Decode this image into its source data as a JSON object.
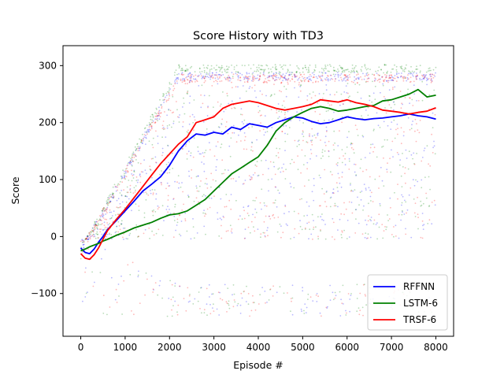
{
  "chart_data": {
    "type": "line",
    "title": "Score History with TD3",
    "xlabel": "Episode #",
    "ylabel": "Score",
    "xlim": [
      -400,
      8400
    ],
    "ylim": [
      -175,
      335
    ],
    "xticks": [
      0,
      1000,
      2000,
      3000,
      4000,
      5000,
      6000,
      7000,
      8000
    ],
    "yticks": [
      -100,
      0,
      100,
      200,
      300
    ],
    "legend_position": "lower right",
    "grid": false,
    "x": [
      0,
      100,
      200,
      300,
      400,
      500,
      600,
      800,
      1000,
      1200,
      1400,
      1600,
      1800,
      2000,
      2200,
      2400,
      2600,
      2800,
      3000,
      3200,
      3400,
      3600,
      3800,
      4000,
      4200,
      4400,
      4600,
      4800,
      5000,
      5200,
      5400,
      5600,
      5800,
      6000,
      6200,
      6400,
      6600,
      6800,
      7000,
      7200,
      7400,
      7600,
      7800,
      8000
    ],
    "series": [
      {
        "name": "RFFNN",
        "color": "#0000ff",
        "values": [
          -20,
          -28,
          -30,
          -22,
          -10,
          0,
          12,
          28,
          45,
          62,
          80,
          92,
          105,
          125,
          150,
          168,
          180,
          178,
          183,
          180,
          192,
          188,
          198,
          195,
          192,
          200,
          205,
          210,
          208,
          202,
          198,
          200,
          205,
          210,
          207,
          205,
          207,
          208,
          210,
          212,
          215,
          212,
          210,
          206
        ]
      },
      {
        "name": "LSTM-6",
        "color": "#008000",
        "values": [
          -25,
          -22,
          -18,
          -15,
          -12,
          -8,
          -5,
          2,
          8,
          15,
          20,
          25,
          32,
          38,
          40,
          45,
          55,
          65,
          80,
          95,
          110,
          120,
          130,
          140,
          160,
          185,
          200,
          210,
          218,
          225,
          228,
          225,
          220,
          222,
          225,
          228,
          230,
          238,
          240,
          245,
          250,
          258,
          245,
          248
        ]
      },
      {
        "name": "TRSF-6",
        "color": "#ff0000",
        "values": [
          -30,
          -38,
          -40,
          -32,
          -20,
          -5,
          10,
          30,
          48,
          68,
          88,
          108,
          128,
          145,
          162,
          175,
          200,
          205,
          210,
          225,
          232,
          235,
          238,
          235,
          230,
          225,
          222,
          225,
          228,
          232,
          240,
          238,
          236,
          240,
          235,
          232,
          228,
          222,
          220,
          218,
          215,
          218,
          220,
          226
        ]
      }
    ]
  }
}
